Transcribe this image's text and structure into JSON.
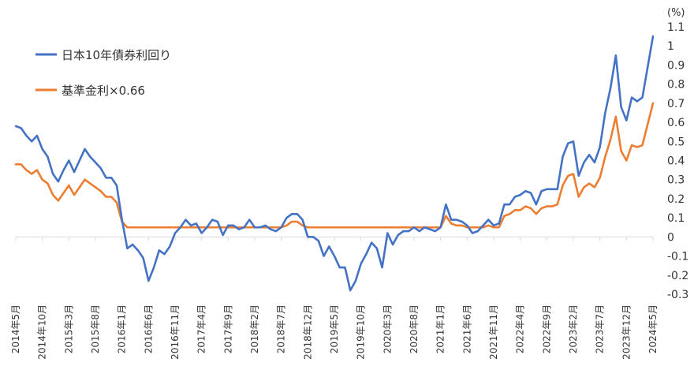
{
  "chart_data": {
    "type": "line",
    "unit": "(%)",
    "ylim": [
      -0.3,
      1.1
    ],
    "y_ticks": [
      "1.1",
      "1",
      "0.9",
      "0.8",
      "0.7",
      "0.6",
      "0.5",
      "0.4",
      "0.3",
      "0.2",
      "0.1",
      "0",
      "-0.1",
      "-0.2",
      "-0.3"
    ],
    "x_tick_labels": [
      "2014年5月",
      "2014年10月",
      "2015年3月",
      "2015年8月",
      "2016年1月",
      "2016年6月",
      "2016年11月",
      "2017年4月",
      "2017年9月",
      "2018年2月",
      "2018年7月",
      "2018年12月",
      "2019年5月",
      "2019年10月",
      "2020年3月",
      "2020年8月",
      "2021年1月",
      "2021年6月",
      "2021年11月",
      "2022年4月",
      "2022年9月",
      "2023年2月",
      "2023年7月",
      "2023年12月",
      "2024年5月"
    ],
    "grid": false,
    "legend_position": "top-left",
    "series": [
      {
        "name": "日本10年債券利回り",
        "color": "#4472C4",
        "values": [
          0.58,
          0.57,
          0.53,
          0.5,
          0.53,
          0.46,
          0.42,
          0.33,
          0.29,
          0.35,
          0.4,
          0.34,
          0.4,
          0.46,
          0.42,
          0.39,
          0.36,
          0.31,
          0.31,
          0.27,
          0.09,
          -0.06,
          -0.04,
          -0.07,
          -0.11,
          -0.23,
          -0.16,
          -0.07,
          -0.09,
          -0.05,
          0.02,
          0.05,
          0.09,
          0.06,
          0.07,
          0.02,
          0.05,
          0.09,
          0.08,
          0.01,
          0.06,
          0.06,
          0.04,
          0.05,
          0.09,
          0.05,
          0.05,
          0.06,
          0.04,
          0.03,
          0.05,
          0.1,
          0.12,
          0.12,
          0.09,
          0.0,
          0.0,
          -0.02,
          -0.1,
          -0.05,
          -0.1,
          -0.16,
          -0.16,
          -0.28,
          -0.23,
          -0.14,
          -0.09,
          -0.03,
          -0.06,
          -0.16,
          0.02,
          -0.04,
          0.01,
          0.03,
          0.03,
          0.05,
          0.03,
          0.05,
          0.04,
          0.03,
          0.05,
          0.17,
          0.09,
          0.09,
          0.08,
          0.06,
          0.02,
          0.03,
          0.06,
          0.09,
          0.06,
          0.07,
          0.17,
          0.17,
          0.21,
          0.22,
          0.24,
          0.23,
          0.17,
          0.24,
          0.25,
          0.25,
          0.25,
          0.42,
          0.49,
          0.5,
          0.32,
          0.39,
          0.43,
          0.39,
          0.47,
          0.65,
          0.78,
          0.95,
          0.68,
          0.61,
          0.73,
          0.71,
          0.73,
          0.89,
          1.05
        ]
      },
      {
        "name": "基準金利×0.66",
        "color": "#ED7D31",
        "values": [
          0.38,
          0.38,
          0.35,
          0.33,
          0.35,
          0.3,
          0.28,
          0.22,
          0.19,
          0.23,
          0.27,
          0.22,
          0.26,
          0.3,
          0.28,
          0.26,
          0.24,
          0.21,
          0.21,
          0.18,
          0.08,
          0.05,
          0.05,
          0.05,
          0.05,
          0.05,
          0.05,
          0.05,
          0.05,
          0.05,
          0.05,
          0.05,
          0.05,
          0.05,
          0.05,
          0.05,
          0.05,
          0.05,
          0.05,
          0.05,
          0.05,
          0.05,
          0.05,
          0.05,
          0.05,
          0.05,
          0.05,
          0.05,
          0.05,
          0.05,
          0.05,
          0.06,
          0.08,
          0.08,
          0.06,
          0.05,
          0.05,
          0.05,
          0.05,
          0.05,
          0.05,
          0.05,
          0.05,
          0.05,
          0.05,
          0.05,
          0.05,
          0.05,
          0.05,
          0.05,
          0.05,
          0.05,
          0.05,
          0.05,
          0.05,
          0.05,
          0.05,
          0.05,
          0.05,
          0.05,
          0.05,
          0.11,
          0.07,
          0.06,
          0.06,
          0.05,
          0.05,
          0.05,
          0.05,
          0.06,
          0.05,
          0.05,
          0.11,
          0.12,
          0.14,
          0.14,
          0.16,
          0.15,
          0.12,
          0.15,
          0.16,
          0.16,
          0.17,
          0.27,
          0.32,
          0.33,
          0.21,
          0.26,
          0.28,
          0.26,
          0.31,
          0.42,
          0.51,
          0.63,
          0.45,
          0.4,
          0.48,
          0.47,
          0.48,
          0.59,
          0.7
        ]
      }
    ]
  }
}
